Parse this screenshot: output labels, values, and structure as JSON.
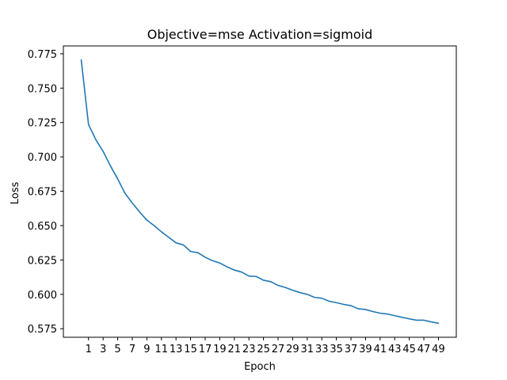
{
  "chart_data": {
    "type": "line",
    "title": "Objective=mse Activation=sigmoid",
    "xlabel": "Epoch",
    "ylabel": "Loss",
    "xlim": [
      -2.45,
      51.45
    ],
    "ylim": [
      0.5688,
      0.7807
    ],
    "grid": false,
    "legend": "none",
    "x_ticks": [
      1,
      3,
      5,
      7,
      9,
      11,
      13,
      15,
      17,
      19,
      21,
      23,
      25,
      27,
      29,
      31,
      33,
      35,
      37,
      39,
      41,
      43,
      45,
      47,
      49
    ],
    "y_ticks": [
      0.575,
      0.6,
      0.625,
      0.65,
      0.675,
      0.7,
      0.725,
      0.75,
      0.775
    ],
    "y_tick_labels": [
      "0.575",
      "0.600",
      "0.625",
      "0.650",
      "0.675",
      "0.700",
      "0.725",
      "0.750",
      "0.775"
    ],
    "series": [
      {
        "color": "#1f77b4",
        "x": [
          0,
          1,
          2,
          3,
          4,
          5,
          6,
          7,
          8,
          9,
          10,
          11,
          12,
          13,
          14,
          15,
          16,
          17,
          18,
          19,
          20,
          21,
          22,
          23,
          24,
          25,
          26,
          27,
          28,
          29,
          30,
          31,
          32,
          33,
          34,
          35,
          36,
          37,
          38,
          39,
          40,
          41,
          42,
          43,
          44,
          45,
          46,
          47,
          48,
          49
        ],
        "values": [
          0.7705,
          0.7235,
          0.7125,
          0.704,
          0.6935,
          0.684,
          0.6735,
          0.6665,
          0.66,
          0.654,
          0.65,
          0.6455,
          0.6415,
          0.6375,
          0.636,
          0.6312,
          0.6303,
          0.627,
          0.6245,
          0.6228,
          0.62,
          0.6177,
          0.6162,
          0.6133,
          0.613,
          0.6103,
          0.6092,
          0.6065,
          0.605,
          0.603,
          0.6013,
          0.6,
          0.5978,
          0.5972,
          0.595,
          0.594,
          0.5927,
          0.5918,
          0.5895,
          0.589,
          0.5875,
          0.5863,
          0.5857,
          0.5845,
          0.5833,
          0.5822,
          0.5812,
          0.5812,
          0.58,
          0.579
        ]
      }
    ]
  }
}
